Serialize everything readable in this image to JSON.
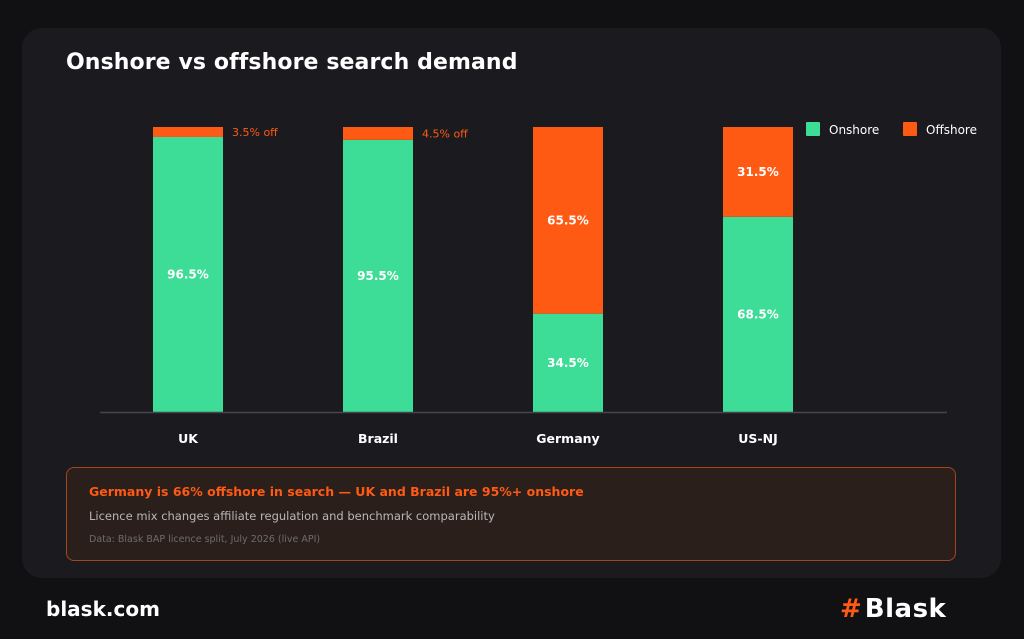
{
  "title": "Onshore vs offshore search demand",
  "colors": {
    "background": "#111113",
    "card": "#1b1b1f",
    "onshore": "#3ddc97",
    "offshore": "#ff5a13"
  },
  "chart_data": {
    "type": "bar",
    "stacked": true,
    "categories": [
      "UK",
      "Brazil",
      "Germany",
      "US-NJ"
    ],
    "series": [
      {
        "name": "Onshore",
        "values": [
          96.5,
          95.5,
          34.5,
          68.5
        ],
        "labels": [
          "96.5%",
          "95.5%",
          "34.5%",
          "68.5%"
        ]
      },
      {
        "name": "Offshore",
        "values": [
          3.5,
          4.5,
          65.5,
          31.5
        ],
        "labels": [
          "3.5% off",
          "4.5% off",
          "65.5%",
          "31.5%"
        ]
      }
    ],
    "ylim": [
      0,
      100
    ],
    "legend": "top-right",
    "grid": false
  },
  "note": {
    "headline": "Germany is 66% offshore in search — UK and Brazil are 95%+ onshore",
    "body": "Licence mix changes affiliate regulation and benchmark comparability",
    "source": "Data: Blask BAP licence split, July 2026 (live API)"
  },
  "footer": {
    "site": "blask.com",
    "logo_mark": "#",
    "logo_text": "Blask"
  }
}
